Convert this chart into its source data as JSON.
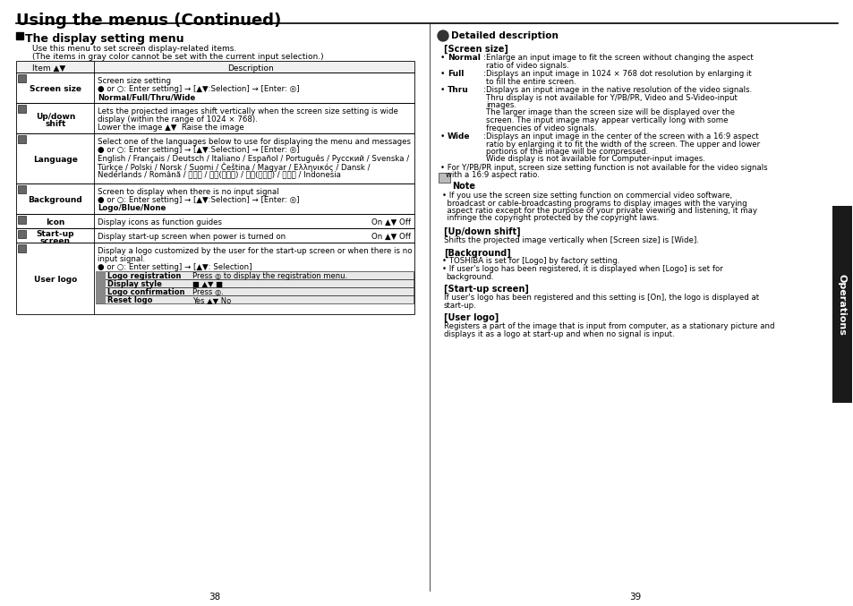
{
  "bg_color": "#ffffff",
  "page_title": "Using the menus (Continued)",
  "section_title": "The display setting menu",
  "section_intro1": "Use this menu to set screen display-related items.",
  "section_intro2": "(The items in gray color cannot be set with the current input selection.)",
  "table_header_item": "Item",
  "table_header_desc": "Description",
  "table_rows": [
    {
      "item": "Screen size",
      "item2": "",
      "desc_lines": [
        {
          "t": "Screen size setting",
          "bold": false
        },
        {
          "t": "● or ○: Enter setting] → [▲▼:Selection] → [Enter: ◎]",
          "bold": false
        },
        {
          "t": "Normal/Full/Thru/Wide",
          "bold": true
        }
      ],
      "rh": 34
    },
    {
      "item": "Up/down",
      "item2": "shift",
      "desc_lines": [
        {
          "t": "Lets the projected images shift vertically when the screen size setting is wide",
          "bold": false
        },
        {
          "t": "display (within the range of 1024 × 768).",
          "bold": false
        },
        {
          "t": "Lower the image ▲▼  Raise the image",
          "bold": false
        }
      ],
      "rh": 34
    },
    {
      "item": "Language",
      "item2": "",
      "desc_lines": [
        {
          "t": "Select one of the languages below to use for displaying the menu and messages",
          "bold": false
        },
        {
          "t": "● or ○: Enter setting] → [▲▼:Selection] → [Enter: ◎]",
          "bold": false
        },
        {
          "t": "English / Français / Deutsch / Italiano / Español / Português / Русский / Svenska /",
          "bold": false
        },
        {
          "t": "Türkçe / Polski / Norsk / Suomi / Čeština / Magyar / Ελληνικός / Dansk /",
          "bold": false
        },
        {
          "t": "Nederlands / Română / 日本語 / 中文(简体字) / 中文(繁體字) / 한국어 / Indonesia",
          "bold": false
        }
      ],
      "rh": 56
    },
    {
      "item": "Background",
      "item2": "",
      "desc_lines": [
        {
          "t": "Screen to display when there is no input signal",
          "bold": false
        },
        {
          "t": "● or ○: Enter setting] → [▲▼:Selection] → [Enter: ◎]",
          "bold": false
        },
        {
          "t": "Logo/Blue/None",
          "bold": true
        }
      ],
      "rh": 34
    },
    {
      "item": "Icon",
      "item2": "",
      "desc_lines": [
        {
          "t": "Display icons as function guides",
          "bold": false,
          "right": "On ▲▼ Off"
        }
      ],
      "rh": 16
    },
    {
      "item": "Start-up",
      "item2": "screen",
      "desc_lines": [
        {
          "t": "Display start-up screen when power is turned on",
          "bold": false,
          "right": "On ▲▼ Off"
        }
      ],
      "rh": 16
    },
    {
      "item": "User logo",
      "item2": "",
      "desc_lines": [
        {
          "t": "Display a logo customized by the user for the start-up screen or when there is no",
          "bold": false
        },
        {
          "t": "input signal.",
          "bold": false
        },
        {
          "t": "● or ○: Enter setting] → [▲▼: Selection]",
          "bold": false
        }
      ],
      "sub_rows": [
        {
          "label": "Logo registration",
          "val": "Press ◎ to display the registration menu."
        },
        {
          "label": "Display style",
          "val": "■ ▲▼ ■"
        },
        {
          "label": "Logo confirmation",
          "val": "Press ◎."
        },
        {
          "label": "Reset logo",
          "val": "Yes ▲▼ No"
        }
      ],
      "rh": 80
    }
  ],
  "right_col_title": "Detailed description",
  "page_numbers": [
    "38",
    "39"
  ],
  "sidebar_text": "Operations",
  "sidebar_bg": "#1a1a1a"
}
